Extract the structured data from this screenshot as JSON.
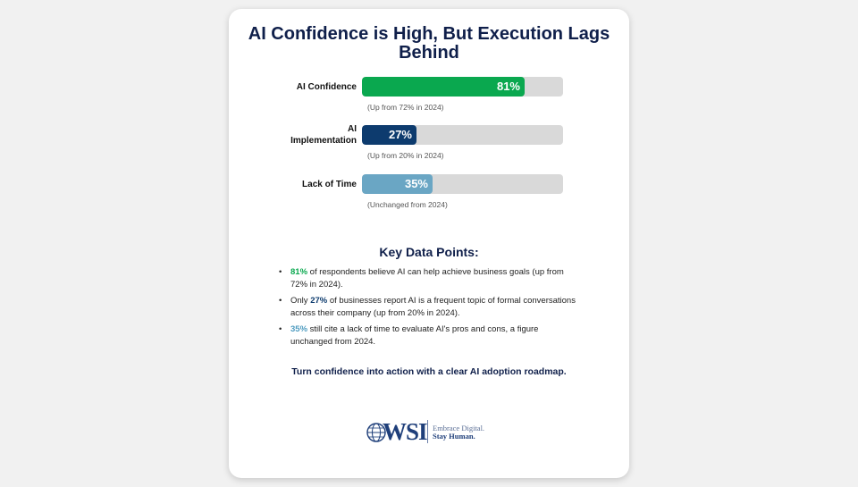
{
  "chart_data": {
    "type": "bar",
    "title": "AI Confidence is High, But Execution Lags Behind",
    "categories": [
      "AI Confidence",
      "AI Implementation",
      "Lack of Time"
    ],
    "values": [
      81,
      27,
      35
    ],
    "value_labels": [
      "81%",
      "27%",
      "35%"
    ],
    "notes": [
      "(Up from 72% in 2024)",
      "(Up from 20% in 2024)",
      "(Unchanged from 2024)"
    ],
    "colors": [
      "#0aa84f",
      "#0d3b6e",
      "#6aa6c4"
    ],
    "track_color": "#d9d9d9",
    "xlim": [
      0,
      100
    ],
    "orientation": "horizontal"
  },
  "key_points": {
    "title": "Key Data Points:",
    "items": [
      {
        "pct": "81%",
        "color": "#0aa84f",
        "text": " of respondents believe AI can help achieve business goals (up from 72% in 2024).",
        "prefix": ""
      },
      {
        "pct": "27%",
        "color": "#0d3b6e",
        "text": " of businesses report AI is a frequent topic of formal conversations across their company (up from 20% in 2024).",
        "prefix": "Only "
      },
      {
        "pct": "35%",
        "color": "#4f9cc0",
        "text": " still cite a lack of time to evaluate AI's pros and cons, a figure unchanged from 2024.",
        "prefix": ""
      }
    ]
  },
  "cta": "Turn confidence into action with a clear AI adoption roadmap.",
  "logo": {
    "wordmark": "WSI",
    "tagline_1": "Embrace Digital.",
    "tagline_2": "Stay Human."
  }
}
